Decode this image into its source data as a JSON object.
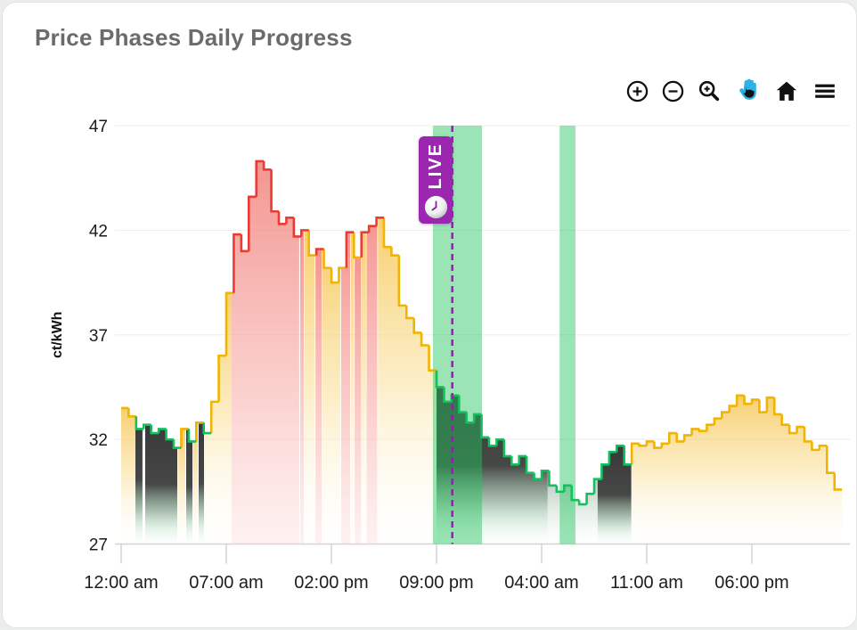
{
  "title": "Price Phases Daily Progress",
  "toolbar": {
    "icons": [
      "zoom-in-circle",
      "zoom-out-circle",
      "selection-zoom-magnifier",
      "pan-hand",
      "home-reset",
      "menu-hamburger"
    ],
    "active_icon": "pan-hand",
    "icon_color": "#111111",
    "active_color": "#2bb3e8"
  },
  "live_badge": {
    "label": "LIVE",
    "color": "#9b27b0"
  },
  "chart_data": {
    "type": "area",
    "subtype": "step-line-phase-colored",
    "title": "Price Phases Daily Progress",
    "ylabel": "ct/kWh",
    "xlabel": "",
    "ylim": [
      27,
      47
    ],
    "y_ticks": [
      47,
      42,
      37,
      32,
      27
    ],
    "x_ticks": [
      {
        "h": 0,
        "label": "12:00 am"
      },
      {
        "h": 7,
        "label": "07:00 am"
      },
      {
        "h": 14,
        "label": "02:00 pm"
      },
      {
        "h": 21,
        "label": "09:00 pm"
      },
      {
        "h": 28,
        "label": "04:00 am"
      },
      {
        "h": 35,
        "label": "11:00 am"
      },
      {
        "h": 42,
        "label": "06:00 pm"
      }
    ],
    "grid": true,
    "x_span_hours": 48,
    "points": {
      "start_h": 0,
      "step_h": 0.5,
      "unit": "ct/kWh",
      "values": [
        33.5,
        33.1,
        32.5,
        32.7,
        32.3,
        32.5,
        32.0,
        31.6,
        32.5,
        31.9,
        32.8,
        32.3,
        33.8,
        36.0,
        39.0,
        41.8,
        41.0,
        43.6,
        45.3,
        44.9,
        42.9,
        42.3,
        42.6,
        41.7,
        42.0,
        40.8,
        41.1,
        40.2,
        39.5,
        40.2,
        41.9,
        40.7,
        41.9,
        42.2,
        42.6,
        41.2,
        40.8,
        38.4,
        37.8,
        37.1,
        36.5,
        35.3,
        34.5,
        33.8,
        34.1,
        33.3,
        32.8,
        33.2,
        32.1,
        31.7,
        32.0,
        31.2,
        30.8,
        31.2,
        30.4,
        30.1,
        30.5,
        29.8,
        29.5,
        29.8,
        29.1,
        28.9,
        29.4,
        30.1,
        30.8,
        31.4,
        31.7,
        30.8,
        31.8,
        31.7,
        31.9,
        31.6,
        31.8,
        32.3,
        31.9,
        32.2,
        32.5,
        32.4,
        32.7,
        33.0,
        33.3,
        33.6,
        34.1,
        33.7,
        33.9,
        33.3,
        34.0,
        33.2,
        32.7,
        32.3,
        32.6,
        31.9,
        31.5,
        31.7,
        30.4,
        29.6
      ],
      "phases": "nnllllllnlnlnnnhhhhhhhhhhnhnnnhnhhhnnnnnnnllllllllllllllllllllllllllnnnnnnnnnnnnnnnnnnnnnnnnnnnn"
    },
    "phase_colors": {
      "normal": "#f1b400",
      "high": "#ea3b34",
      "low": "#12c05e"
    },
    "fill_segments": [
      [
        0.0,
        0.95,
        "yellow"
      ],
      [
        0.95,
        1.42,
        "dark"
      ],
      [
        1.6,
        3.74,
        "dark"
      ],
      [
        3.8,
        4.27,
        "yellow"
      ],
      [
        4.33,
        4.75,
        "dark"
      ],
      [
        4.8,
        5.1,
        "yellow"
      ],
      [
        5.16,
        5.52,
        "dark"
      ],
      [
        5.58,
        7.35,
        "yellow"
      ],
      [
        7.35,
        11.86,
        "red"
      ],
      [
        11.92,
        12.16,
        "red"
      ],
      [
        12.2,
        12.88,
        "yellow"
      ],
      [
        12.94,
        13.36,
        "red"
      ],
      [
        13.4,
        14.6,
        "yellow"
      ],
      [
        14.65,
        15.25,
        "red"
      ],
      [
        15.3,
        15.5,
        "yellow"
      ],
      [
        15.55,
        15.98,
        "red"
      ],
      [
        16.02,
        16.3,
        "yellow"
      ],
      [
        16.34,
        17.05,
        "red"
      ],
      [
        17.1,
        20.95,
        "yellow"
      ],
      [
        21.0,
        28.4,
        "dark"
      ],
      [
        28.4,
        31.73,
        "light"
      ],
      [
        31.73,
        33.97,
        "dark"
      ],
      [
        34.0,
        48.0,
        "yellow"
      ]
    ],
    "highlight_bands_h": [
      [
        20.76,
        24.03
      ],
      [
        29.2,
        30.25
      ]
    ],
    "highlight_band_color": "rgba(34,197,94,0.46)",
    "live_time_h": 22.05,
    "live_line_color": "#8e24aa",
    "legend_position": "none"
  }
}
